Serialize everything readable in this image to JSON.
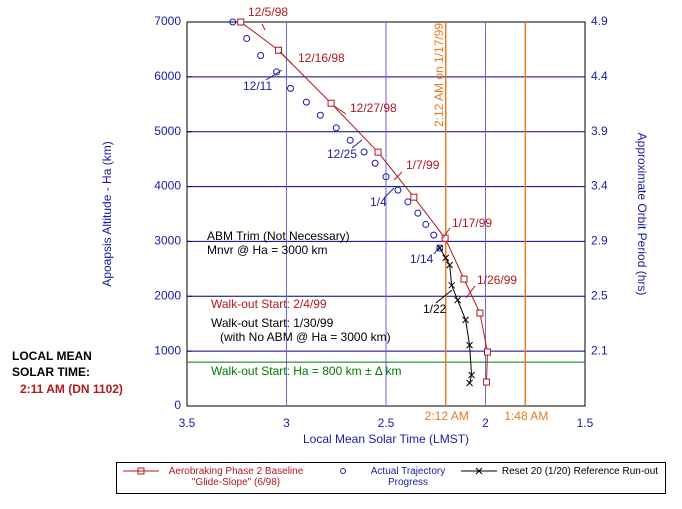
{
  "chart_data": {
    "type": "line",
    "xlabel": "Local Mean Solar Time (LMST)",
    "ylabel": "Apoapsis Altitude - Ha (km)",
    "y2label": "Approximate Orbit Period (hrs)",
    "xlim": [
      3.5,
      1.5
    ],
    "xticks": [
      {
        "value": 3.5,
        "label": "3.5"
      },
      {
        "value": 3,
        "label": "3"
      },
      {
        "value": 2.5,
        "label": "2.5"
      },
      {
        "value": 2,
        "label": "2"
      },
      {
        "value": 1.5,
        "label": "1.5"
      }
    ],
    "ylim": [
      0,
      7000
    ],
    "yticks": [
      0,
      1000,
      2000,
      3000,
      4000,
      5000,
      6000,
      7000
    ],
    "y2tick_labels": [
      "2.1",
      "2.5",
      "2.9",
      "3.4",
      "3.9",
      "4.4",
      "4.9"
    ],
    "grid": true,
    "series": [
      {
        "name": "Aerobraking Phase 2 Baseline \"Glide-Slope\" (6/98)",
        "color": "#b0191e",
        "marker": "square",
        "x": [
          3.23,
          3.04,
          2.776,
          2.54,
          2.36,
          2.203,
          2.108,
          2.028,
          1.99,
          1.995
        ],
        "values": [
          7000,
          6485,
          5519,
          4627,
          3807,
          3060,
          2313,
          1694,
          984,
          437
        ]
      },
      {
        "name": "Actual Trajectory Progress",
        "color": "#1a1aa6",
        "marker": "circle",
        "x": [
          3.27,
          3.2,
          3.13,
          3.05,
          2.98,
          2.9,
          2.83,
          2.75,
          2.68,
          2.61,
          2.555,
          2.5,
          2.44,
          2.39,
          2.34,
          2.3,
          2.26,
          2.23
        ],
        "values": [
          7000,
          6700,
          6390,
          6090,
          5790,
          5540,
          5300,
          5070,
          4845,
          4630,
          4425,
          4180,
          3935,
          3720,
          3515,
          3310,
          3115,
          2880
        ]
      },
      {
        "name": "Reset 20 (1/20) Reference Run-out",
        "color": "#000000",
        "marker": "x",
        "x": [
          2.23,
          2.2,
          2.18,
          2.17,
          2.14,
          2.1,
          2.08,
          2.07,
          2.08
        ],
        "values": [
          2880,
          2700,
          2570,
          2200,
          1930,
          1570,
          1110,
          565,
          420
        ]
      }
    ],
    "vlines": [
      {
        "x": 2.2,
        "label": "2:12 AM",
        "color": "#e87a20"
      },
      {
        "x": 1.8,
        "label": "1:48 AM",
        "color": "#e87a20"
      }
    ],
    "hlines": [
      {
        "y": 800,
        "color": "#007a00"
      }
    ],
    "annotations": [
      "12/5/98",
      "12/16/98",
      "12/27/98",
      "1/7/99",
      "1/17/99",
      "1/26/99",
      "12/11",
      "12/25",
      "1/4",
      "1/14",
      "1/22",
      "ABM Trim (Not Necessary)",
      "Mnvr @ Ha = 3000 km",
      "Walk-out Start:  2/4/99",
      "Walk-out Start:   1/30/99",
      "(with No ABM @ Ha = 3000 km)",
      "Walk-out Start:  Ha = 800 km ± Δ km",
      "2:12 AM on 1/17/99",
      "LOCAL MEAN",
      "SOLAR TIME:",
      "2:11 AM (DN 1102)"
    ]
  }
}
